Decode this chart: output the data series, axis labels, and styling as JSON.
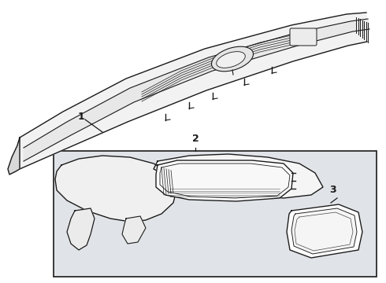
{
  "background_color": "#ffffff",
  "box_fill_color": "#e0e4e8",
  "line_color": "#1a1a1a",
  "label1": "1",
  "label2": "2",
  "label3": "3",
  "figsize": [
    4.9,
    3.6
  ],
  "dpi": 100
}
